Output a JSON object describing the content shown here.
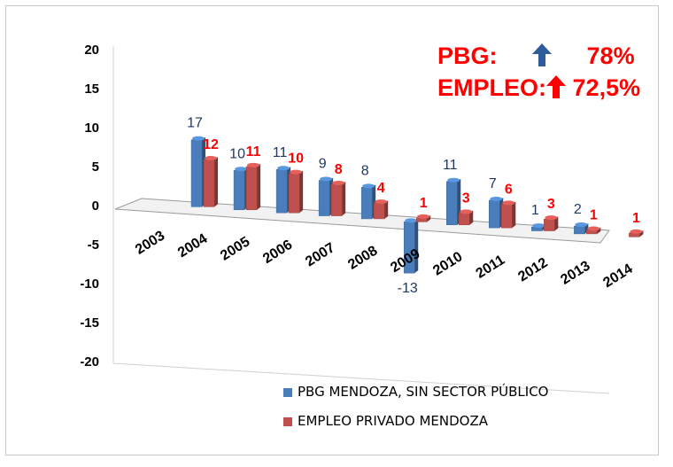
{
  "chart_data": {
    "type": "bar",
    "categories": [
      "2003",
      "2004",
      "2005",
      "2006",
      "2007",
      "2008",
      "2009",
      "2010",
      "2011",
      "2012",
      "2013",
      "2014"
    ],
    "series": [
      {
        "name": "PBG MENDOZA, SIN SECTOR PÚBLICO",
        "color": "#4a7ebb",
        "values": [
          null,
          17,
          10,
          11,
          9,
          8,
          -13,
          11,
          7,
          1,
          2,
          null
        ]
      },
      {
        "name": "EMPLEO PRIVADO MENDOZA",
        "color": "#c0504d",
        "values": [
          null,
          12,
          11,
          10,
          8,
          4,
          1,
          3,
          6,
          3,
          1,
          1
        ]
      }
    ],
    "data_labels": {
      "PBG": [
        "",
        "17",
        "10",
        "11",
        "9",
        "8",
        "-13",
        "11",
        "7",
        "1",
        "2",
        ""
      ],
      "EMPLEO": [
        "",
        "12",
        "11",
        "10",
        "8",
        "4",
        "1",
        "3",
        "6",
        "3",
        "1",
        "1"
      ]
    },
    "y_ticks": [
      "20",
      "15",
      "10",
      "5",
      "0",
      "-5",
      "-10",
      "-15",
      "-20"
    ],
    "ylim": [
      -20,
      20
    ],
    "grid": false,
    "legend_position": "bottom-right",
    "annotations": {
      "pbg_label": "PBG:",
      "pbg_value": "78%",
      "empleo_label": "EMPLEO:",
      "empleo_value": "72,5%",
      "up_arrow_icon_pbg": "up-arrow-blue",
      "up_arrow_icon_empleo": "up-arrow-red"
    },
    "label_colors": {
      "PBG": "#1f3864",
      "EMPLEO": "#ff0000"
    }
  }
}
